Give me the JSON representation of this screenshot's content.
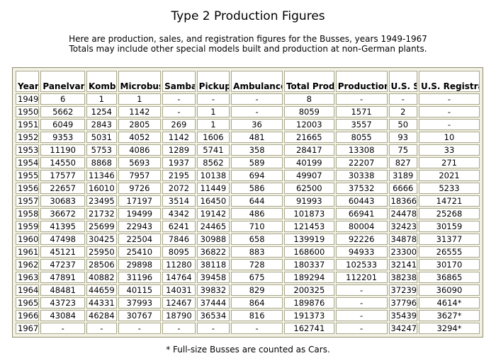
{
  "title": "Type 2 Production Figures",
  "intro": {
    "line1": "Here are production, sales, and registration figures for the Busses, years 1949-1967",
    "line2": "Totals may include other special models built and production at non-German plants."
  },
  "table": {
    "headers": [
      "Year",
      "Panelvan",
      "Kombi",
      "Microbus",
      "Samba",
      "Pickup",
      "Ambulance",
      "Total Production",
      "Production For Export",
      "U.S. Sales",
      "U.S. Registrations"
    ],
    "rows": [
      [
        "1949",
        "6",
        "1",
        "1",
        "-",
        "-",
        "-",
        "8",
        "-",
        "-",
        "-"
      ],
      [
        "1950",
        "5662",
        "1254",
        "1142",
        "-",
        "1",
        "-",
        "8059",
        "1571",
        "2",
        "-"
      ],
      [
        "1951",
        "6049",
        "2843",
        "2805",
        "269",
        "1",
        "36",
        "12003",
        "3557",
        "50",
        "-"
      ],
      [
        "1952",
        "9353",
        "5031",
        "4052",
        "1142",
        "1606",
        "481",
        "21665",
        "8055",
        "93",
        "10"
      ],
      [
        "1953",
        "11190",
        "5753",
        "4086",
        "1289",
        "5741",
        "358",
        "28417",
        "13308",
        "75",
        "33"
      ],
      [
        "1954",
        "14550",
        "8868",
        "5693",
        "1937",
        "8562",
        "589",
        "40199",
        "22207",
        "827",
        "271"
      ],
      [
        "1955",
        "17577",
        "11346",
        "7957",
        "2195",
        "10138",
        "694",
        "49907",
        "30338",
        "3189",
        "2021"
      ],
      [
        "1956",
        "22657",
        "16010",
        "9726",
        "2072",
        "11449",
        "586",
        "62500",
        "37532",
        "6666",
        "5233"
      ],
      [
        "1957",
        "30683",
        "23495",
        "17197",
        "3514",
        "16450",
        "644",
        "91993",
        "60443",
        "18366",
        "14721"
      ],
      [
        "1958",
        "36672",
        "21732",
        "19499",
        "4342",
        "19142",
        "486",
        "101873",
        "66941",
        "24478",
        "25268"
      ],
      [
        "1959",
        "41395",
        "25699",
        "22943",
        "6241",
        "24465",
        "710",
        "121453",
        "80004",
        "32423",
        "30159"
      ],
      [
        "1960",
        "47498",
        "30425",
        "22504",
        "7846",
        "30988",
        "658",
        "139919",
        "92226",
        "34878",
        "31377"
      ],
      [
        "1961",
        "45121",
        "25950",
        "25410",
        "8095",
        "36822",
        "883",
        "168600",
        "94933",
        "23300",
        "26555"
      ],
      [
        "1962",
        "47237",
        "28506",
        "29898",
        "11280",
        "38118",
        "728",
        "180337",
        "102533",
        "32141",
        "30170"
      ],
      [
        "1963",
        "47891",
        "40882",
        "31196",
        "14764",
        "39458",
        "675",
        "189294",
        "112201",
        "38238",
        "36865"
      ],
      [
        "1964",
        "48481",
        "44659",
        "40115",
        "14031",
        "39832",
        "829",
        "200325",
        "-",
        "37239",
        "36090"
      ],
      [
        "1965",
        "43723",
        "44331",
        "37993",
        "12467",
        "37444",
        "864",
        "189876",
        "-",
        "37796",
        "4614*"
      ],
      [
        "1966",
        "43084",
        "46284",
        "30767",
        "18790",
        "36534",
        "816",
        "191373",
        "-",
        "35439",
        "3627*"
      ],
      [
        "1967",
        "-",
        "-",
        "-",
        "-",
        "-",
        "-",
        "162741",
        "-",
        "34247",
        "3294*"
      ]
    ]
  },
  "footnote": "* Full-size Busses are counted as Cars."
}
